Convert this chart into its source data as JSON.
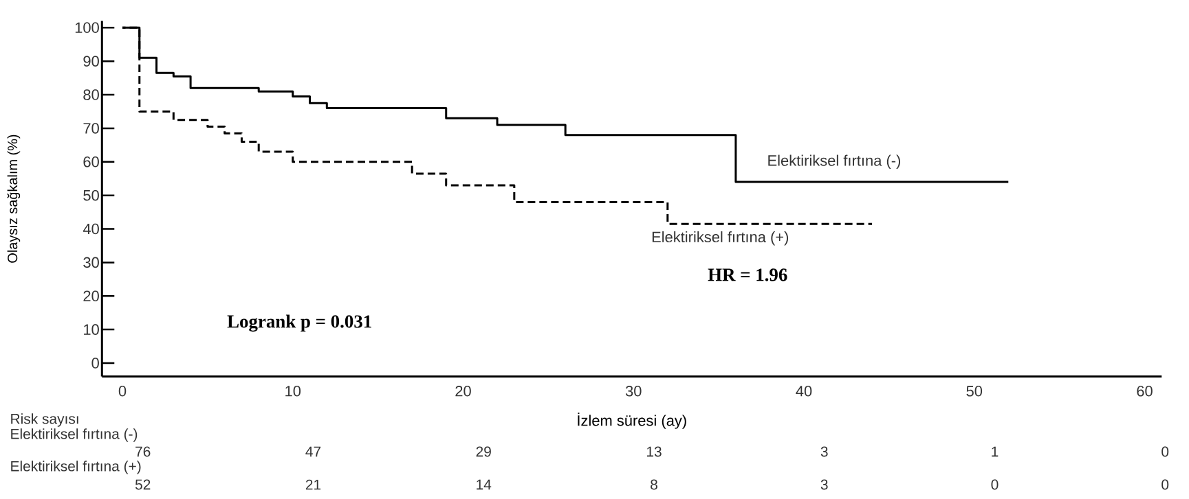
{
  "chart_data": {
    "type": "step",
    "xlabel": "İzlem süresi (ay)",
    "ylabel": "Olaysız sağkalım (%)",
    "xlim": [
      -1.2,
      61
    ],
    "ylim": [
      -4,
      102
    ],
    "xticks": [
      0,
      10,
      20,
      30,
      40,
      50,
      60
    ],
    "yticks": [
      0,
      10,
      20,
      30,
      40,
      50,
      60,
      70,
      80,
      90,
      100
    ],
    "series": [
      {
        "name": "Elektiriksel fırtına (-)",
        "color": "#000000",
        "line_style": "solid",
        "x": [
          0,
          1,
          2,
          3,
          4,
          8,
          10,
          11,
          12,
          19,
          22,
          26,
          36,
          52
        ],
        "values": [
          100,
          91,
          86.5,
          85.5,
          82,
          81,
          79.5,
          77.5,
          76,
          73,
          71,
          68,
          54,
          54
        ]
      },
      {
        "name": "Elektiriksel fırtına (+)",
        "color": "#000000",
        "line_style": "dashed",
        "x": [
          0,
          1,
          3,
          5,
          6,
          7,
          8,
          10,
          17,
          19,
          23,
          32,
          44
        ],
        "values": [
          100,
          75,
          72.5,
          70.5,
          68.5,
          66,
          63,
          60,
          56.5,
          53,
          48,
          41.5,
          41.5
        ]
      }
    ],
    "annotations": [
      "Logrank p = 0.031",
      "HR = 1.96",
      "Risk sayısı",
      "Elektiriksel fırtına (-)",
      "76",
      "47",
      "29",
      "13",
      "3",
      "1",
      "0",
      "Elektiriksel fırtına (+)",
      "52",
      "21",
      "14",
      "8",
      "3",
      "0",
      "0"
    ]
  }
}
